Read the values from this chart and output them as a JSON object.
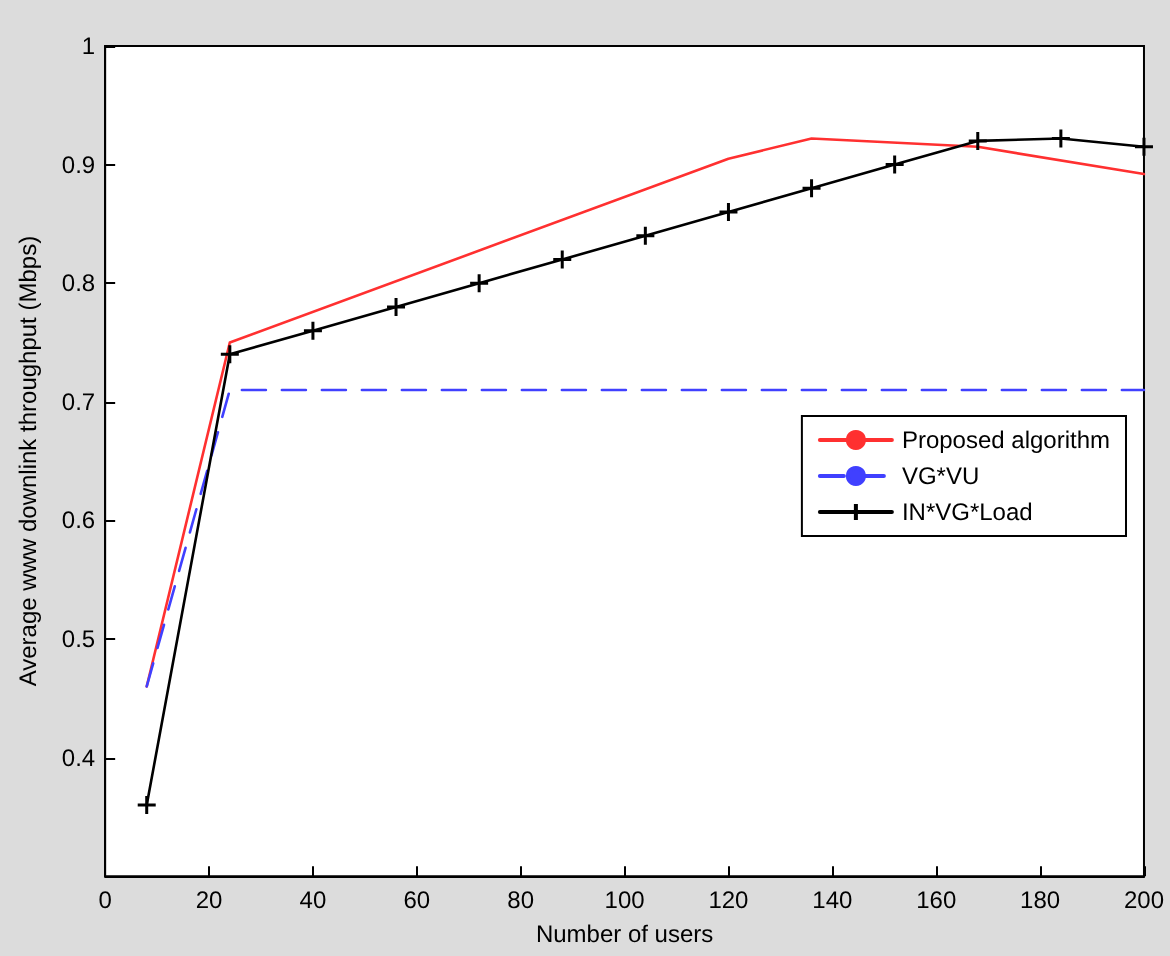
{
  "chart_data": {
    "type": "line",
    "xlabel": "Number of users",
    "ylabel": "Average www downlink throughput (Mbps)",
    "xlim": [
      0,
      200
    ],
    "xticks": [
      0,
      20,
      40,
      60,
      80,
      100,
      120,
      140,
      160,
      180,
      200
    ],
    "ylim": [
      0.3,
      1
    ],
    "yticks": [
      0.4,
      0.5,
      0.6,
      0.7,
      0.8,
      0.9,
      1
    ],
    "grid": false,
    "legend": "right",
    "series": [
      {
        "name": "Proposed algorithm",
        "color": "#ff3030",
        "line_style": "solid",
        "marker": "none",
        "x": [
          8,
          24,
          120,
          136,
          168,
          200
        ],
        "values": [
          0.46,
          0.75,
          0.905,
          0.922,
          0.915,
          0.892
        ]
      },
      {
        "name": "VG*VU",
        "color": "#4040ff",
        "line_style": "dashed",
        "marker": "none",
        "x": [
          8,
          24,
          200
        ],
        "values": [
          0.46,
          0.71,
          0.71
        ]
      },
      {
        "name": "IN*VG*Load",
        "color": "#000000",
        "line_style": "solid",
        "marker": "cross",
        "x": [
          8,
          24,
          40,
          56,
          72,
          88,
          104,
          120,
          136,
          152,
          168,
          184,
          200
        ],
        "values": [
          0.36,
          0.74,
          0.76,
          0.78,
          0.8,
          0.82,
          0.84,
          0.86,
          0.88,
          0.9,
          0.92,
          0.922,
          0.915
        ]
      }
    ]
  }
}
